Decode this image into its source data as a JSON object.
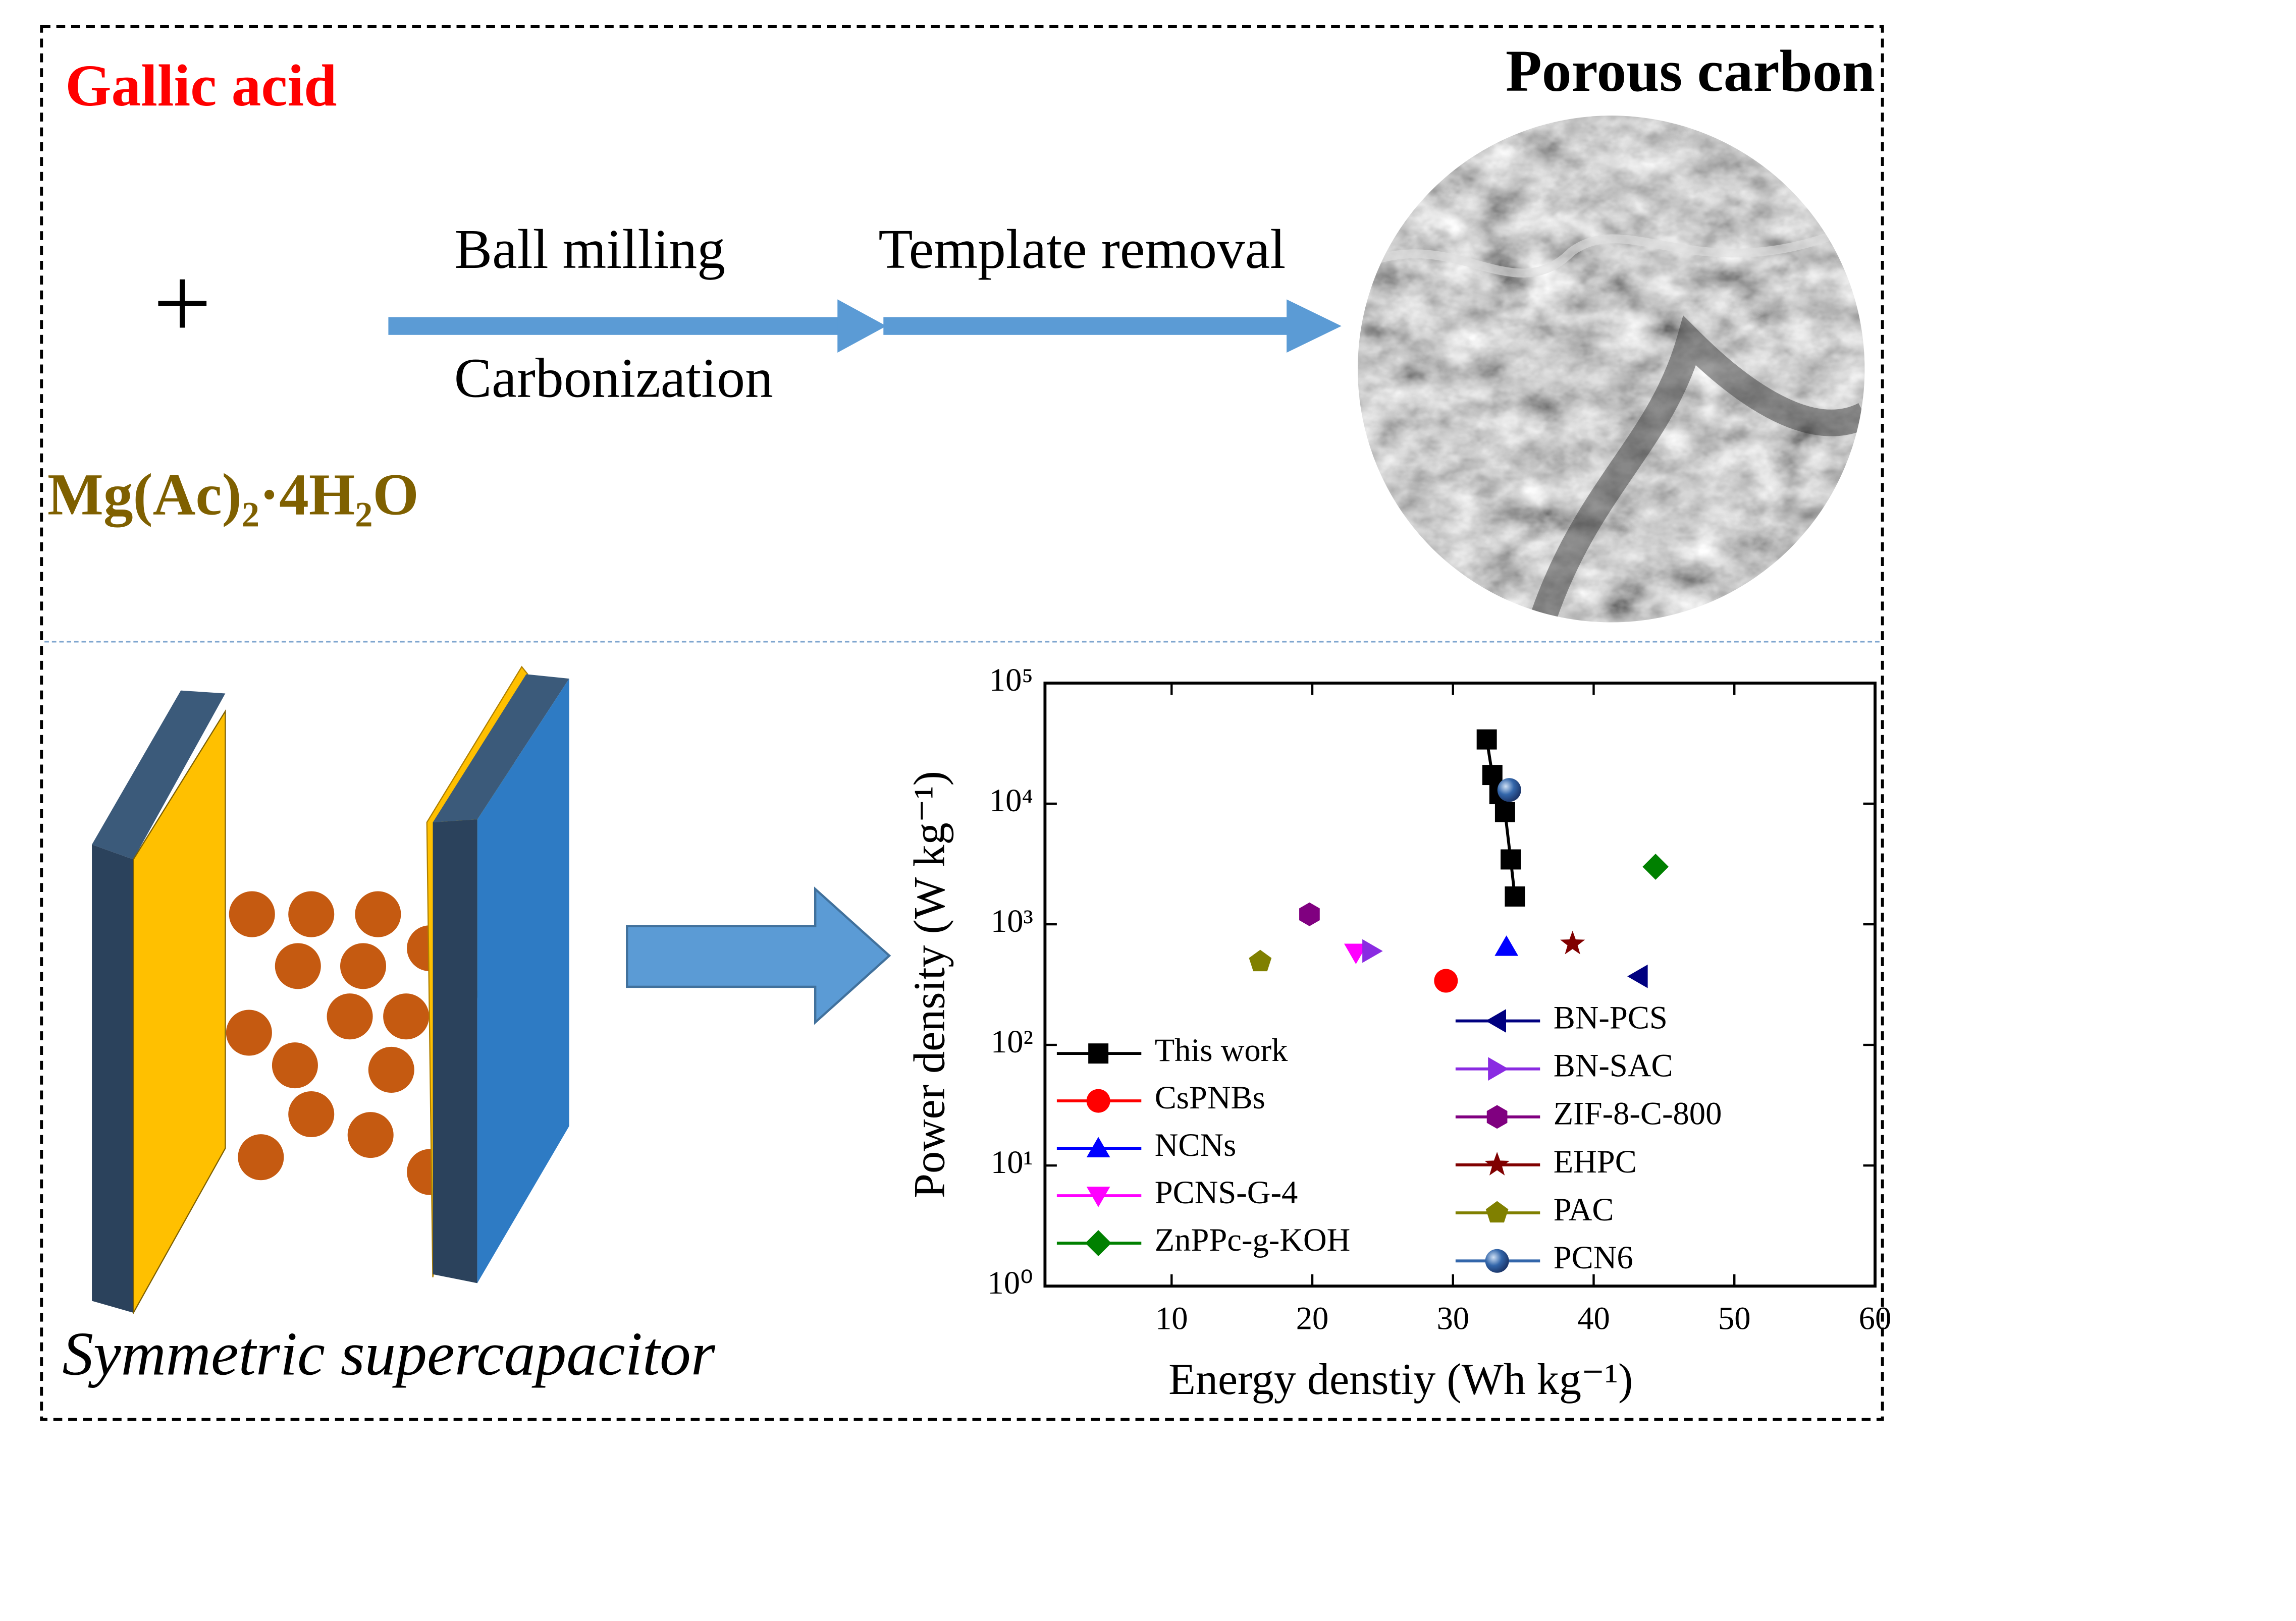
{
  "diagram": {
    "reactant_1": "Gallic acid",
    "plus": "+",
    "reactant_2": "Mg(Ac)₂·4H₂O",
    "step_1_top": "Ball milling",
    "step_1_bottom": "Carbonization",
    "step_2_top": "Template removal",
    "product": "Porous carbon",
    "device": "Symmetric supercapacitor"
  },
  "chart_data": {
    "type": "scatter",
    "x_label": "Energy denstiy (Wh kg⁻¹)",
    "y_label": "Power density (W kg⁻¹)",
    "xlim": [
      1,
      60
    ],
    "xticks": [
      10,
      20,
      30,
      40,
      50,
      60
    ],
    "ylim": [
      1,
      100000
    ],
    "y_log": true,
    "yticks": [
      {
        "value": 1,
        "label": "10⁰"
      },
      {
        "value": 10,
        "label": "10¹"
      },
      {
        "value": 100,
        "label": "10²"
      },
      {
        "value": 1000,
        "label": "10³"
      },
      {
        "value": 10000,
        "label": "10⁴"
      },
      {
        "value": 100000,
        "label": "10⁵"
      }
    ],
    "series": [
      {
        "name": "This work",
        "color": "#000000",
        "marker": "square",
        "line": true,
        "x": [
          32.4,
          32.8,
          33.3,
          33.7,
          34.1,
          34.4
        ],
        "values": [
          34100,
          17300,
          12000,
          8530,
          3450,
          1700
        ]
      },
      {
        "name": "CsPNBs",
        "color": "#ff0000",
        "marker": "circle",
        "x": [
          29.5
        ],
        "values": [
          340
        ]
      },
      {
        "name": "NCNs",
        "color": "#0000ff",
        "marker": "triangle-up",
        "x": [
          33.8
        ],
        "values": [
          650
        ]
      },
      {
        "name": "PCNS-G-4",
        "color": "#ff00ff",
        "marker": "triangle-down",
        "x": [
          23.1
        ],
        "values": [
          581
        ]
      },
      {
        "name": "ZnPPc-g-KOH",
        "color": "#008000",
        "marker": "diamond",
        "x": [
          44.4
        ],
        "values": [
          3000
        ]
      },
      {
        "name": "BN-PCS",
        "color": "#000080",
        "marker": "triangle-left",
        "x": [
          43.2
        ],
        "values": [
          370
        ]
      },
      {
        "name": "BN-SAC",
        "color": "#8a2be2",
        "marker": "triangle-right",
        "x": [
          24.2
        ],
        "values": [
          600
        ]
      },
      {
        "name": "ZIF-8-C-800",
        "color": "#800080",
        "marker": "hexagon",
        "x": [
          19.8
        ],
        "values": [
          1210
        ]
      },
      {
        "name": "EHPC",
        "color": "#800000",
        "marker": "star",
        "x": [
          38.5
        ],
        "values": [
          690
        ]
      },
      {
        "name": "PAC",
        "color": "#808000",
        "marker": "pentagon",
        "x": [
          16.3
        ],
        "values": [
          490
        ]
      },
      {
        "name": "PCN6",
        "color": "#3366aa",
        "marker": "sphere",
        "x": [
          34.0
        ],
        "values": [
          13000
        ]
      }
    ]
  }
}
